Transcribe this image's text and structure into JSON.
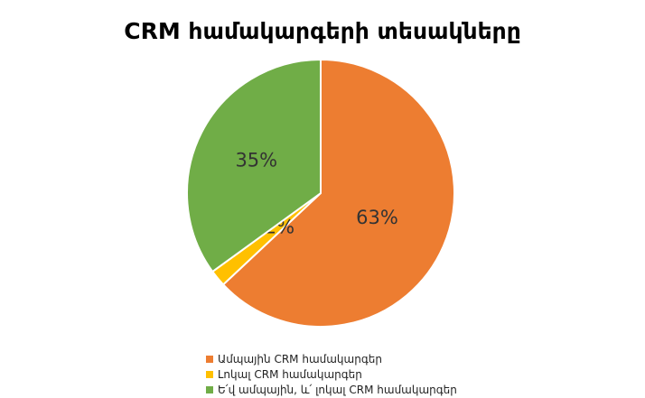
{
  "chart_data": {
    "type": "pie",
    "title": "CRM համակարգերի տեսակները",
    "slices": [
      {
        "label": "Ամպային CRM համակարգեր",
        "value": 63,
        "display": "63%",
        "color": "#ED7D31"
      },
      {
        "label": "Լոկալ CRM համակարգեր",
        "value": 2,
        "display": "2%",
        "color": "#FFC000"
      },
      {
        "label": "Ե՛վ ամպային, և՛ լոկալ CRM համակարգեր",
        "value": 35,
        "display": "35%",
        "color": "#70AD47"
      }
    ],
    "legend_position": "bottom"
  }
}
